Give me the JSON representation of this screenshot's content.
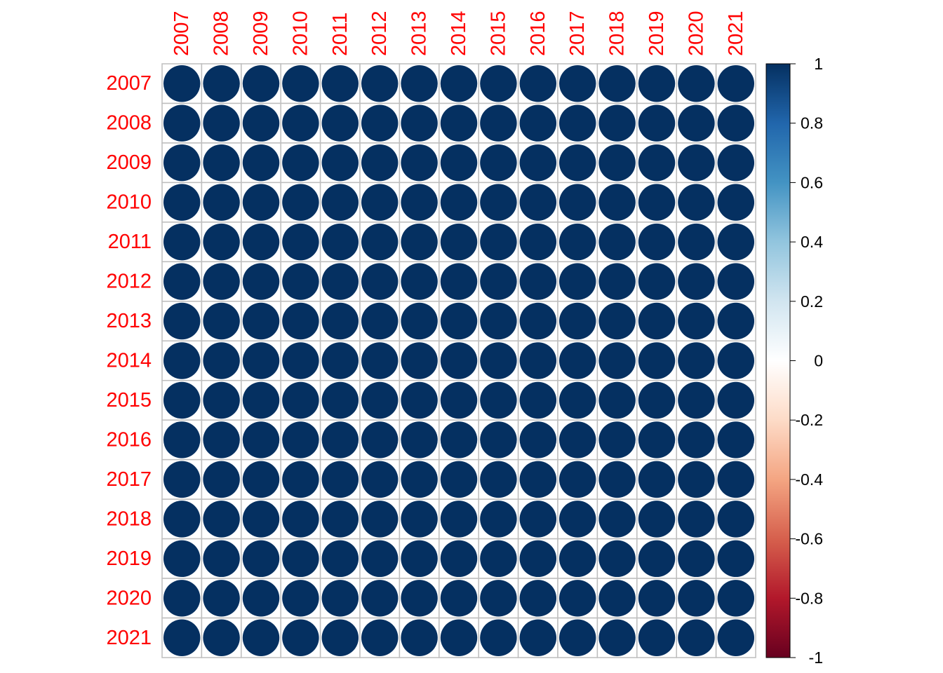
{
  "chart_data": {
    "type": "heatmap",
    "method": "circle",
    "variables": [
      "2007",
      "2008",
      "2009",
      "2010",
      "2011",
      "2012",
      "2013",
      "2014",
      "2015",
      "2016",
      "2017",
      "2018",
      "2019",
      "2020",
      "2021"
    ],
    "matrix": [
      [
        1,
        1,
        1,
        1,
        1,
        1,
        1,
        1,
        1,
        1,
        1,
        1,
        1,
        1,
        1
      ],
      [
        1,
        1,
        1,
        1,
        1,
        1,
        1,
        1,
        1,
        1,
        1,
        1,
        1,
        1,
        1
      ],
      [
        1,
        1,
        1,
        1,
        1,
        1,
        1,
        1,
        1,
        1,
        1,
        1,
        1,
        1,
        1
      ],
      [
        1,
        1,
        1,
        1,
        1,
        1,
        1,
        1,
        1,
        1,
        1,
        1,
        1,
        1,
        1
      ],
      [
        1,
        1,
        1,
        1,
        1,
        1,
        1,
        1,
        1,
        1,
        1,
        1,
        1,
        1,
        1
      ],
      [
        1,
        1,
        1,
        1,
        1,
        1,
        1,
        1,
        1,
        1,
        1,
        1,
        1,
        1,
        1
      ],
      [
        1,
        1,
        1,
        1,
        1,
        1,
        1,
        1,
        1,
        1,
        1,
        1,
        1,
        1,
        1
      ],
      [
        1,
        1,
        1,
        1,
        1,
        1,
        1,
        1,
        1,
        1,
        1,
        1,
        1,
        1,
        1
      ],
      [
        1,
        1,
        1,
        1,
        1,
        1,
        1,
        1,
        1,
        1,
        1,
        1,
        1,
        1,
        1
      ],
      [
        1,
        1,
        1,
        1,
        1,
        1,
        1,
        1,
        1,
        1,
        1,
        1,
        1,
        1,
        1
      ],
      [
        1,
        1,
        1,
        1,
        1,
        1,
        1,
        1,
        1,
        1,
        1,
        1,
        1,
        1,
        1
      ],
      [
        1,
        1,
        1,
        1,
        1,
        1,
        1,
        1,
        1,
        1,
        1,
        1,
        1,
        1,
        1
      ],
      [
        1,
        1,
        1,
        1,
        1,
        1,
        1,
        1,
        1,
        1,
        1,
        1,
        1,
        1,
        1
      ],
      [
        1,
        1,
        1,
        1,
        1,
        1,
        1,
        1,
        1,
        1,
        1,
        1,
        1,
        1,
        1
      ],
      [
        1,
        1,
        1,
        1,
        1,
        1,
        1,
        1,
        1,
        1,
        1,
        1,
        1,
        1,
        1
      ]
    ],
    "colorbar": {
      "range": [
        -1,
        1
      ],
      "ticks": [
        1,
        0.8,
        0.6,
        0.4,
        0.2,
        0,
        -0.2,
        -0.4,
        -0.6,
        -0.8,
        -1
      ],
      "tick_labels": [
        "1",
        "0.8",
        "0.6",
        "0.4",
        "0.2",
        "0",
        "-0.2",
        "-0.4",
        "-0.6",
        "-0.8",
        "-1"
      ],
      "placement": "right",
      "palette": [
        "#67001F",
        "#B2182B",
        "#D6604D",
        "#F4A582",
        "#FDDBC7",
        "#FFFFFF",
        "#D1E5F0",
        "#92C5DE",
        "#4393C3",
        "#2166AC",
        "#053061"
      ]
    },
    "colors": {
      "label": "#FF0000",
      "grid": "#BEBEBE",
      "positive_max": "#053061"
    },
    "grid": true,
    "title": "",
    "xlabel": "",
    "ylabel": ""
  }
}
